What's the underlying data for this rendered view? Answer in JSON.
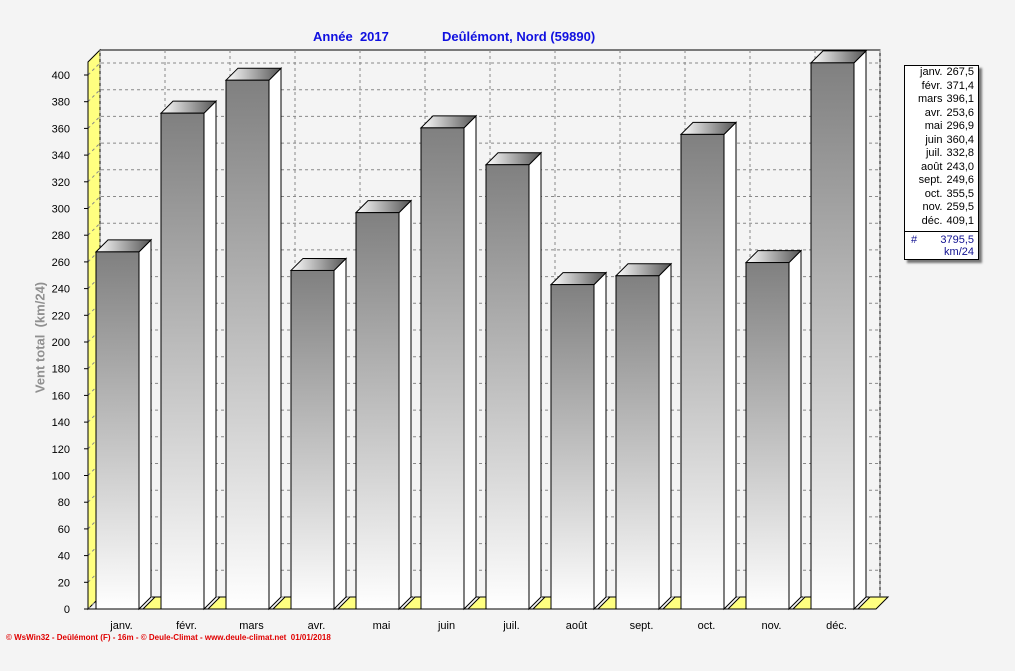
{
  "chart_data": {
    "type": "bar",
    "title_left": "Année  2017",
    "title_right": "Deûlémont, Nord (59890)",
    "ylabel": "Vent total  (km/24)",
    "xlabel": "",
    "ylim": [
      0,
      400
    ],
    "yticks": [
      0,
      20,
      40,
      60,
      80,
      100,
      120,
      140,
      160,
      180,
      200,
      220,
      240,
      260,
      280,
      300,
      320,
      340,
      360,
      380,
      400
    ],
    "grid": true,
    "categories": [
      "janv.",
      "févr.",
      "mars",
      "avr.",
      "mai",
      "juin",
      "juil.",
      "août",
      "sept.",
      "oct.",
      "nov.",
      "déc."
    ],
    "values": [
      267.5,
      371.4,
      396.1,
      253.6,
      296.9,
      360.4,
      332.8,
      243.0,
      249.6,
      355.5,
      259.5,
      409.1
    ],
    "value_labels": [
      "267,5",
      "371,4",
      "396,1",
      "253,6",
      "296,9",
      "360,4",
      "332,8",
      "243,0",
      "249,6",
      "355,5",
      "259,5",
      "409,1"
    ],
    "legend_placement": "right",
    "total_symbol": "#",
    "total": "3795,5",
    "total_unit": "km/24",
    "colors": {
      "title": "#1010e0",
      "side_wall": "#ffff80",
      "footer": "#e00000",
      "total": "#101090"
    }
  },
  "footer": "© WsWin32 - Deûlémont (F) - 16m - © Deule-Climat - www.deule-climat.net  01/01/2018"
}
